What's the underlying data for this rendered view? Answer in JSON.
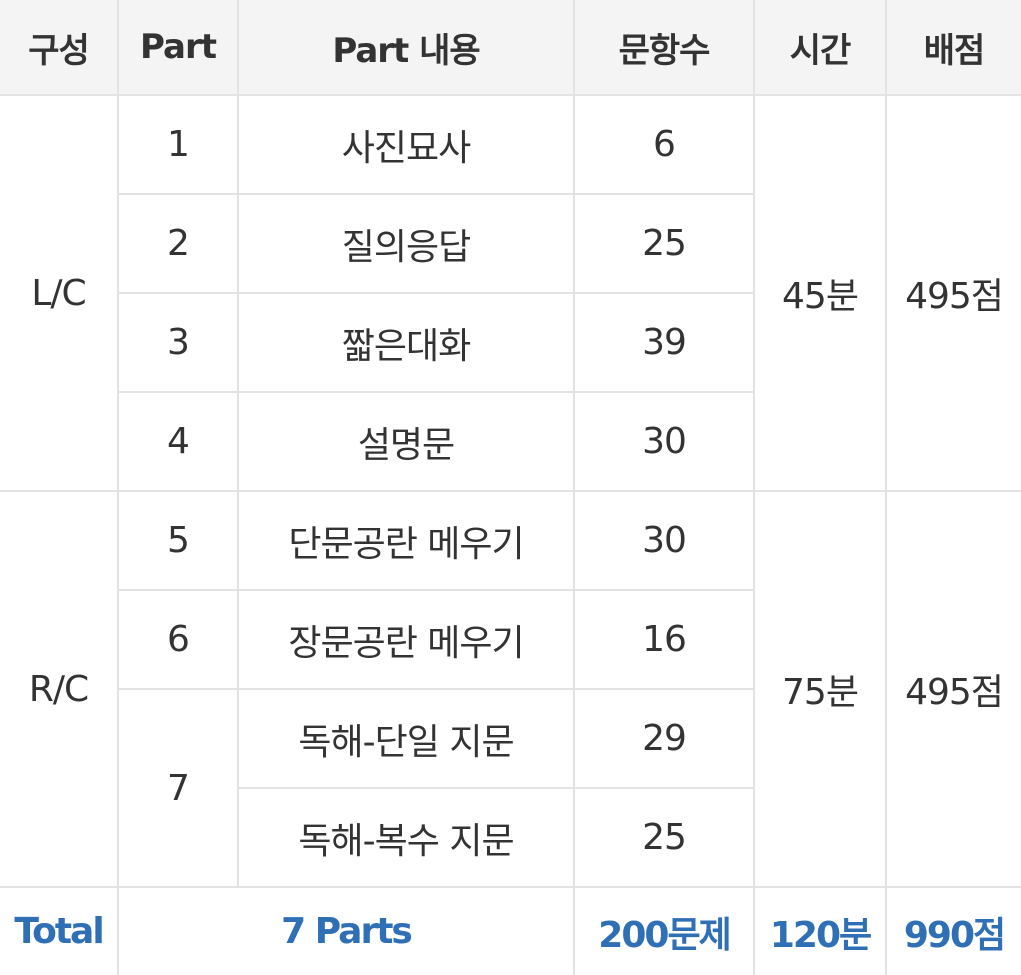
{
  "headers": [
    "구성",
    "Part",
    "Part 내용",
    "문항수",
    "시간",
    "배점"
  ],
  "lc": {
    "label": "L/C",
    "time": "45분",
    "score": "495점",
    "parts": [
      {
        "part": "1",
        "content": "사진묘사",
        "count": "6"
      },
      {
        "part": "2",
        "content": "질의응답",
        "count": "25"
      },
      {
        "part": "3",
        "content": "짧은대화",
        "count": "39"
      },
      {
        "part": "4",
        "content": "설명문",
        "count": "30"
      }
    ]
  },
  "rc": {
    "label": "R/C",
    "time": "75분",
    "score": "495점",
    "parts": [
      {
        "part": "5",
        "content": "단문공란 메우기",
        "count": "30"
      },
      {
        "part": "6",
        "content": "장문공란 메우기",
        "count": "16"
      },
      {
        "part": "7",
        "content": "독해-단일 지문",
        "count": "29"
      },
      {
        "part": "",
        "content": "독해-복수 지문",
        "count": "25"
      }
    ]
  },
  "total": {
    "label": "Total",
    "parts": "7 Parts",
    "count": "200문제",
    "time": "120분",
    "score": "990점"
  }
}
